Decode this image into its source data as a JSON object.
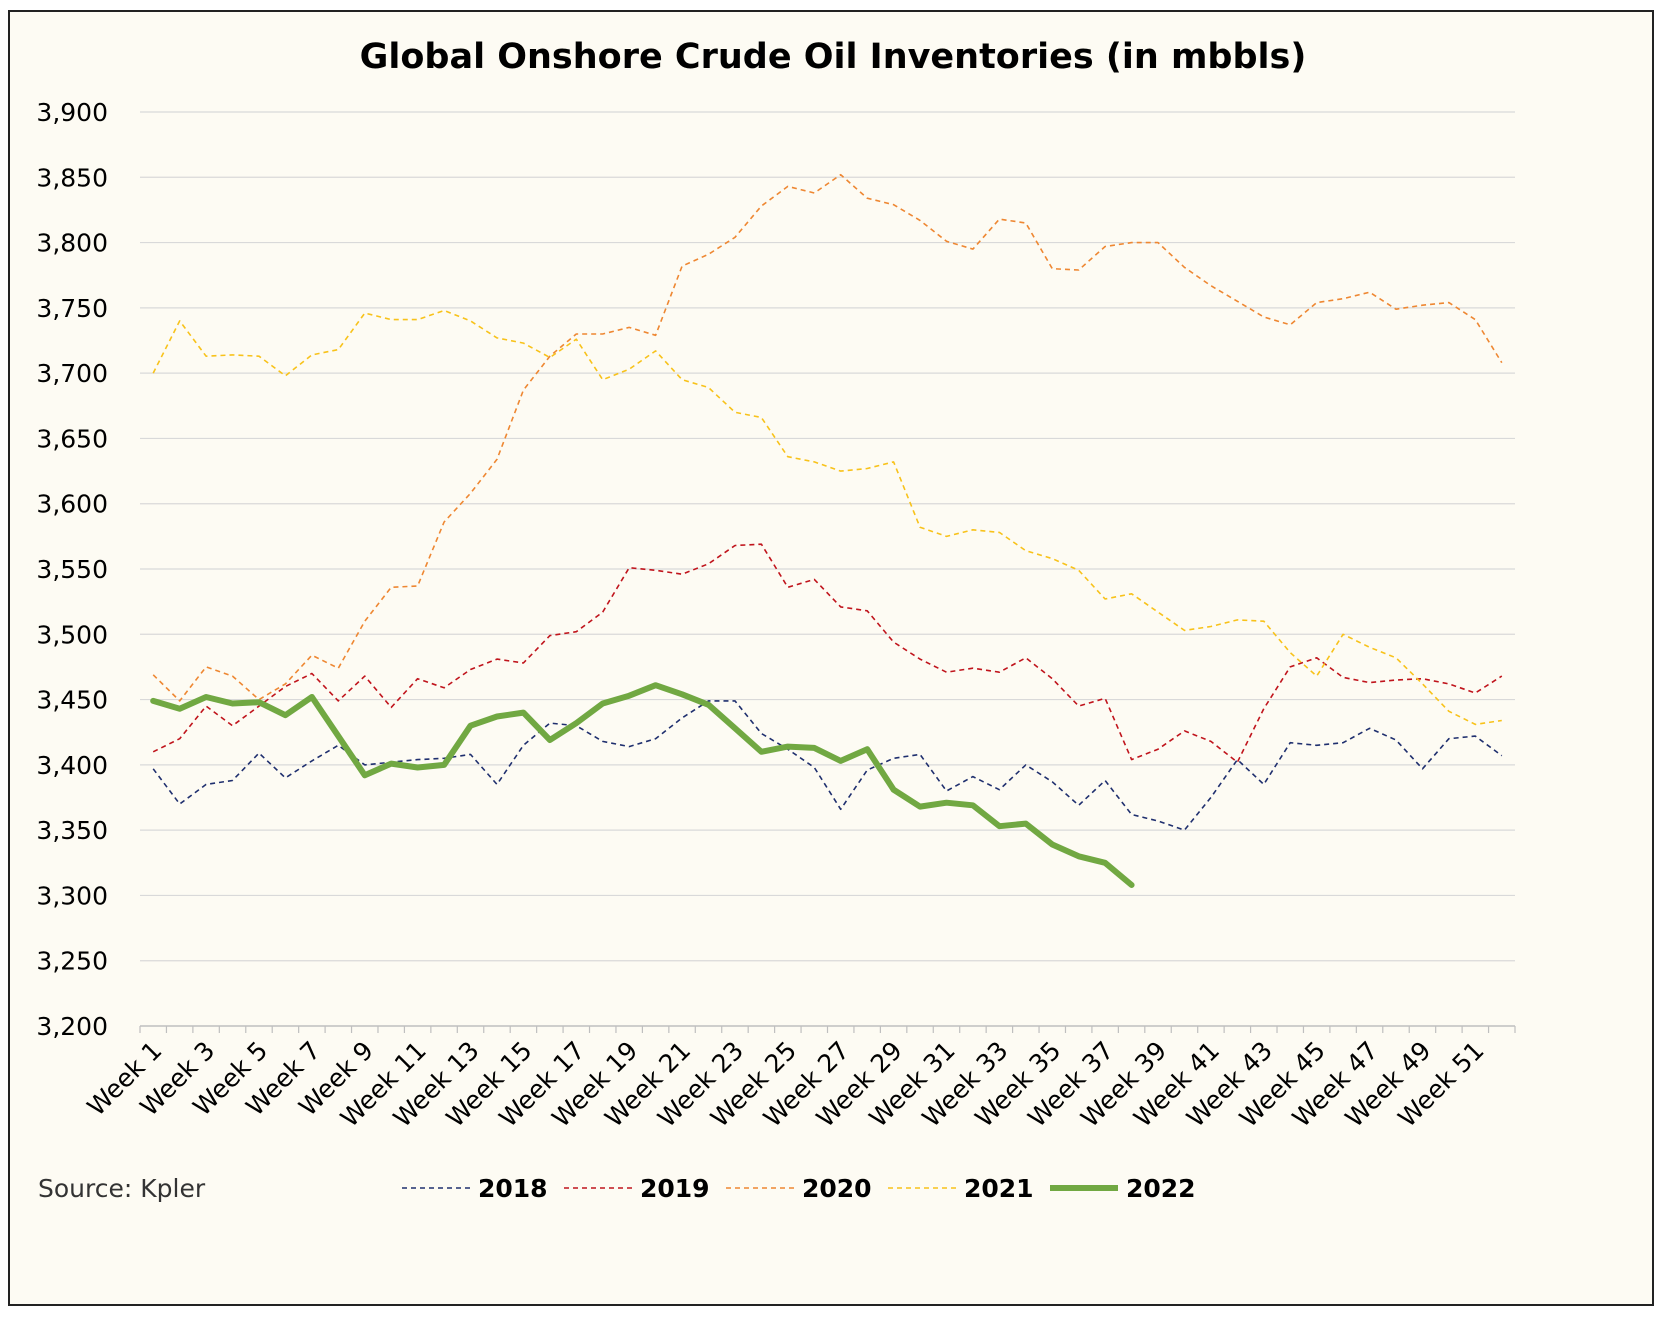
{
  "chart_data": {
    "type": "line",
    "title": "Global Onshore Crude Oil Inventories (in mbbls)",
    "source": "Source: Kpler",
    "ylim": [
      3200,
      3900
    ],
    "ytick_step": 50,
    "ytick_labels": [
      "3,200",
      "3,250",
      "3,300",
      "3,350",
      "3,400",
      "3,450",
      "3,500",
      "3,550",
      "3,600",
      "3,650",
      "3,700",
      "3,750",
      "3,800",
      "3,850",
      "3,900"
    ],
    "xtick_labels": [
      "Week 1",
      "Week 3",
      "Week 5",
      "Week 7",
      "Week 9",
      "Week 11",
      "Week 13",
      "Week 15",
      "Week 17",
      "Week 19",
      "Week 21",
      "Week 23",
      "Week 25",
      "Week 27",
      "Week 29",
      "Week 31",
      "Week 33",
      "Week 35",
      "Week 37",
      "Week 39",
      "Week 41",
      "Week 43",
      "Week 45",
      "Week 47",
      "Week 49",
      "Week 51"
    ],
    "week_count": 52,
    "grid": true,
    "legend_position": "bottom",
    "series": [
      {
        "name": "2018",
        "color": "#1f2f6e",
        "style": "dashed",
        "width": 1.6,
        "values": [
          3397,
          3370,
          3385,
          3388,
          3409,
          3390,
          3403,
          3415,
          3400,
          3402,
          3404,
          3405,
          3408,
          3385,
          3415,
          3432,
          3430,
          3418,
          3414,
          3420,
          3436,
          3449,
          3449,
          3424,
          3412,
          3398,
          3366,
          3396,
          3405,
          3408,
          3380,
          3391,
          3381,
          3400,
          3387,
          3369,
          3388,
          3362,
          3357,
          3350,
          3375,
          3404,
          3385,
          3417,
          3415,
          3417,
          3428,
          3419,
          3397,
          3420,
          3422,
          3407
        ]
      },
      {
        "name": "2019",
        "color": "#c0141c",
        "style": "dashed",
        "width": 1.6,
        "values": [
          3410,
          3420,
          3445,
          3430,
          3445,
          3460,
          3470,
          3449,
          3468,
          3444,
          3466,
          3459,
          3473,
          3481,
          3478,
          3499,
          3502,
          3517,
          3551,
          3549,
          3546,
          3554,
          3568,
          3569,
          3536,
          3542,
          3521,
          3518,
          3494,
          3481,
          3471,
          3474,
          3471,
          3482,
          3466,
          3445,
          3451,
          3404,
          3412,
          3426,
          3418,
          3402,
          3443,
          3475,
          3482,
          3467,
          3463,
          3465,
          3466,
          3462,
          3455,
          3468
        ]
      },
      {
        "name": "2020",
        "color": "#ee8732",
        "style": "dashed",
        "width": 1.6,
        "values": [
          3469,
          3449,
          3475,
          3468,
          3450,
          3462,
          3484,
          3474,
          3510,
          3536,
          3537,
          3586,
          3608,
          3634,
          3687,
          3713,
          3730,
          3730,
          3735,
          3729,
          3782,
          3791,
          3804,
          3828,
          3843,
          3838,
          3852,
          3834,
          3829,
          3817,
          3801,
          3795,
          3818,
          3815,
          3780,
          3779,
          3797,
          3800,
          3800,
          3781,
          3767,
          3755,
          3743,
          3737,
          3754,
          3757,
          3762,
          3749,
          3752,
          3754,
          3741,
          3708
        ]
      },
      {
        "name": "2021",
        "color": "#f8c21a",
        "style": "dashed",
        "width": 1.6,
        "values": [
          3700,
          3740,
          3713,
          3714,
          3713,
          3698,
          3714,
          3718,
          3746,
          3741,
          3741,
          3748,
          3740,
          3727,
          3723,
          3712,
          3726,
          3695,
          3703,
          3717,
          3695,
          3689,
          3670,
          3666,
          3636,
          3632,
          3625,
          3627,
          3632,
          3582,
          3575,
          3580,
          3578,
          3564,
          3558,
          3549,
          3527,
          3531,
          3517,
          3503,
          3506,
          3511,
          3510,
          3486,
          3468,
          3500,
          3490,
          3482,
          3462,
          3441,
          3431,
          3434
        ]
      },
      {
        "name": "2022",
        "color": "#71a842",
        "style": "solid",
        "width": 6,
        "values": [
          3449,
          3443,
          3452,
          3447,
          3448,
          3438,
          3452,
          3422,
          3392,
          3401,
          3398,
          3400,
          3430,
          3437,
          3440,
          3419,
          3432,
          3447,
          3453,
          3461,
          3454,
          3446,
          3428,
          3410,
          3414,
          3413,
          3403,
          3412,
          3381,
          3368,
          3371,
          3369,
          3353,
          3355,
          3339,
          3330,
          3325,
          3308
        ]
      }
    ]
  }
}
